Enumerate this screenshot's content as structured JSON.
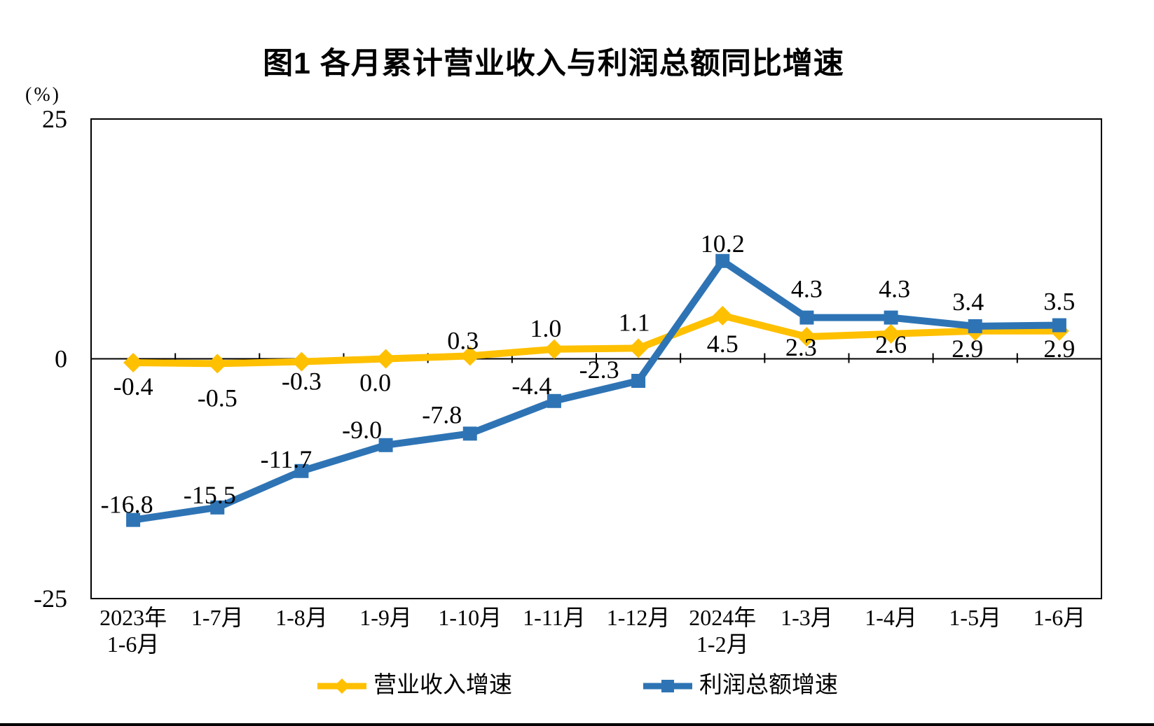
{
  "title": "图1  各月累计营业收入与利润总额同比增速",
  "colors": {
    "revenue_line": "#FFC000",
    "profit_line": "#2E74B5",
    "axis": "#000000",
    "background": "#FFFFFF",
    "text": "#000000"
  },
  "chart_data": {
    "type": "line",
    "title": "图1  各月累计营业收入与利润总额同比增速",
    "unit": "(%)",
    "grid": false,
    "legend_position": "bottom",
    "y_axis": {
      "min": -25,
      "max": 25,
      "tick_values": [
        25,
        0,
        -25
      ],
      "tick_labels": [
        "25",
        "0",
        "-25"
      ]
    },
    "categories": [
      [
        "2023年",
        "1-6月"
      ],
      [
        "1-7月"
      ],
      [
        "1-8月"
      ],
      [
        "1-9月"
      ],
      [
        "1-10月"
      ],
      [
        "1-11月"
      ],
      [
        "1-12月"
      ],
      [
        "2024年",
        "1-2月"
      ],
      [
        "1-3月"
      ],
      [
        "1-4月"
      ],
      [
        "1-5月"
      ],
      [
        "1-6月"
      ]
    ],
    "series": [
      {
        "name": "营业收入增速",
        "color": "#FFC000",
        "marker": "diamond",
        "values": [
          -0.4,
          -0.5,
          -0.3,
          0.0,
          0.3,
          1.0,
          1.1,
          4.5,
          2.3,
          2.6,
          2.9,
          2.9
        ],
        "labels": [
          "-0.4",
          "-0.5",
          "-0.3",
          "0.0",
          "0.3",
          "1.0",
          "1.1",
          "4.5",
          "2.3",
          "2.6",
          "2.9",
          "2.9"
        ],
        "label_dx": [
          0,
          0,
          0,
          -15,
          -10,
          -12,
          -6,
          0,
          -8,
          0,
          -11,
          0
        ],
        "label_dy": [
          46,
          61,
          40,
          46,
          -10,
          -18,
          -25,
          52,
          27,
          27,
          37,
          37
        ]
      },
      {
        "name": "利润总额增速",
        "color": "#2E74B5",
        "marker": "square",
        "values": [
          -16.8,
          -15.5,
          -11.7,
          -9.0,
          -7.8,
          -4.4,
          -2.3,
          10.2,
          4.3,
          4.3,
          3.4,
          3.5
        ],
        "labels": [
          "-16.8",
          "-15.5",
          "-11.7",
          "-9.0",
          "-7.8",
          "-4.4",
          "-2.3",
          "10.2",
          "4.3",
          "4.3",
          "3.4",
          "3.5"
        ],
        "label_dx": [
          -9,
          -11,
          -22,
          -34,
          -40,
          -32,
          -56,
          0,
          0,
          5,
          -10,
          0
        ],
        "label_dy": [
          -10,
          -6,
          -5,
          -10,
          -15,
          -10,
          -4,
          -13,
          -29,
          -29,
          -23,
          -22
        ]
      }
    ]
  }
}
